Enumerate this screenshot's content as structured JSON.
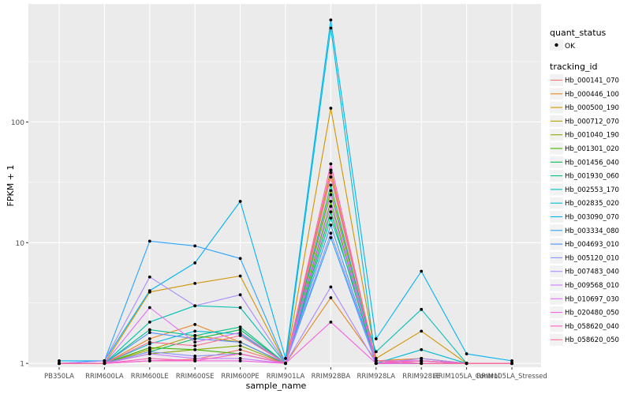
{
  "chart_data": {
    "type": "line",
    "title": "",
    "xlabel": "sample_name",
    "ylabel": "FPKM + 1",
    "y_scale": "log10",
    "ylim": [
      0.93,
      950
    ],
    "y_ticks": [
      1,
      10,
      100
    ],
    "y_tick_labels": [
      "1",
      "10",
      "100"
    ],
    "grid": true,
    "panel_background": "#ebebeb",
    "grid_color": "#ffffff",
    "point_color": "#000000",
    "categories": [
      "PB350LA",
      "RRIM600LA",
      "RRIM600LE",
      "RRIM600SE",
      "RRIM600PE",
      "RRIM901LA",
      "RRIM928BA",
      "RRIM928LA",
      "RRIM928LE",
      "RRIM105LA_Control",
      "RRIM105LA_Stressed"
    ],
    "legend_position": "right",
    "legend": {
      "shape_title": "quant_status",
      "shape_entry": "OK",
      "color_title": "tracking_id"
    },
    "series": [
      {
        "name": "Hb_000141_070",
        "color": "#F8766D",
        "values": [
          1.0,
          1.0,
          1.05,
          1.08,
          1.3,
          1.0,
          35,
          1.05,
          1.05,
          1.0,
          1.0
        ]
      },
      {
        "name": "Hb_000446_100",
        "color": "#E7851E",
        "values": [
          1.0,
          1.0,
          1.6,
          2.1,
          1.5,
          1.0,
          3.5,
          1.05,
          1.1,
          1.0,
          1.0
        ]
      },
      {
        "name": "Hb_000500_190",
        "color": "#D09400",
        "values": [
          1.0,
          1.0,
          3.9,
          4.6,
          5.3,
          1.0,
          130,
          1.1,
          1.85,
          1.0,
          1.0
        ]
      },
      {
        "name": "Hb_000712_070",
        "color": "#B2A100",
        "values": [
          1.0,
          1.0,
          1.3,
          1.7,
          1.5,
          1.0,
          40,
          1.0,
          1.1,
          1.0,
          1.0
        ]
      },
      {
        "name": "Hb_001040_190",
        "color": "#89AC00",
        "values": [
          1.0,
          1.0,
          1.2,
          1.3,
          1.4,
          1.0,
          27,
          1.0,
          1.05,
          1.0,
          1.0
        ]
      },
      {
        "name": "Hb_001301_020",
        "color": "#45B500",
        "values": [
          1.0,
          1.0,
          1.35,
          1.3,
          1.2,
          1.0,
          22,
          1.0,
          1.0,
          1.0,
          1.0
        ]
      },
      {
        "name": "Hb_001456_040",
        "color": "#00BC51",
        "values": [
          1.0,
          1.0,
          1.25,
          1.6,
          1.9,
          1.0,
          18,
          1.0,
          1.05,
          1.0,
          1.0
        ]
      },
      {
        "name": "Hb_001930_060",
        "color": "#00C087",
        "values": [
          1.0,
          1.0,
          1.9,
          1.7,
          2.0,
          1.0,
          30,
          1.0,
          1.0,
          1.0,
          1.0
        ]
      },
      {
        "name": "Hb_002553_170",
        "color": "#00C0B2",
        "values": [
          1.0,
          1.0,
          2.2,
          3.0,
          2.9,
          1.0,
          16,
          1.25,
          2.8,
          1.0,
          1.0
        ]
      },
      {
        "name": "Hb_002835_020",
        "color": "#00BCD6",
        "values": [
          1.0,
          1.0,
          1.45,
          1.85,
          1.75,
          1.0,
          600,
          1.0,
          1.3,
          1.0,
          1.0
        ]
      },
      {
        "name": "Hb_003090_070",
        "color": "#00B3F2",
        "values": [
          1.05,
          1.05,
          4.0,
          6.8,
          22,
          1.1,
          700,
          1.6,
          5.8,
          1.2,
          1.05
        ]
      },
      {
        "name": "Hb_003334_080",
        "color": "#29A3FF",
        "values": [
          1.0,
          1.05,
          10.3,
          9.4,
          7.4,
          1.0,
          11,
          1.0,
          1.05,
          1.0,
          1.0
        ]
      },
      {
        "name": "Hb_004693_010",
        "color": "#4F8EFF",
        "values": [
          1.0,
          1.0,
          1.8,
          1.6,
          1.5,
          1.0,
          14,
          1.0,
          1.0,
          1.0,
          1.0
        ]
      },
      {
        "name": "Hb_005120_010",
        "color": "#8B93FF",
        "values": [
          1.0,
          1.0,
          1.25,
          1.15,
          1.2,
          1.0,
          12,
          1.0,
          1.05,
          1.0,
          1.0
        ]
      },
      {
        "name": "Hb_007483_040",
        "color": "#AB8AFF",
        "values": [
          1.0,
          1.05,
          5.2,
          3.0,
          3.7,
          1.0,
          4.3,
          1.0,
          1.1,
          1.0,
          1.0
        ]
      },
      {
        "name": "Hb_009568_010",
        "color": "#C77CFF",
        "values": [
          1.0,
          1.0,
          1.2,
          1.1,
          1.1,
          1.0,
          25,
          1.0,
          1.0,
          1.0,
          1.0
        ]
      },
      {
        "name": "Hb_010697_030",
        "color": "#E26EF7",
        "values": [
          1.0,
          1.0,
          2.9,
          1.5,
          1.8,
          1.0,
          20,
          1.05,
          1.05,
          1.0,
          1.0
        ]
      },
      {
        "name": "Hb_020480_050",
        "color": "#F564E3",
        "values": [
          1.0,
          1.0,
          1.05,
          1.05,
          1.05,
          1.0,
          2.2,
          1.0,
          1.0,
          1.0,
          1.0
        ]
      },
      {
        "name": "Hb_058620_040",
        "color": "#FF62BC",
        "values": [
          1.0,
          1.0,
          1.1,
          1.05,
          1.2,
          1.0,
          45,
          1.0,
          1.05,
          1.0,
          1.0
        ]
      },
      {
        "name": "Hb_058620_050",
        "color": "#FF6C91",
        "values": [
          1.0,
          1.0,
          1.5,
          1.4,
          1.7,
          1.0,
          38,
          1.05,
          1.0,
          1.0,
          1.0
        ]
      }
    ]
  }
}
